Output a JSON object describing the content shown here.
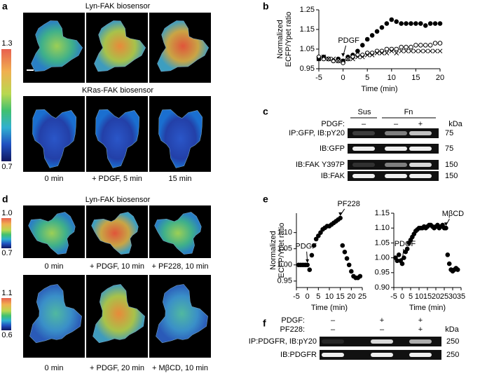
{
  "panel_labels": [
    "a",
    "b",
    "c",
    "d",
    "e",
    "f"
  ],
  "panel_a": {
    "title_top": "Lyn-FAK biosensor",
    "title_bottom": "KRas-FAK biosensor",
    "colorbar": [
      "1.3",
      "0.7"
    ],
    "times": [
      "0 min",
      "+ PDGF, 5 min",
      "15 min"
    ]
  },
  "panel_c": {
    "columns": [
      "Sus",
      "Fn"
    ],
    "pdgf_label": "PDGF:",
    "pdgf": [
      "–",
      "–",
      "+"
    ],
    "unit": "kDa",
    "rows": [
      {
        "label": "IP:GFP, IB:pY20",
        "kda": 75
      },
      {
        "label": "IB:GFP",
        "kda": 75
      },
      {
        "label": "IB:FAK Y397P",
        "kda": 150
      },
      {
        "label": "IB:FAK",
        "kda": 150
      }
    ]
  },
  "panel_d": {
    "title": "Lyn-FAK biosensor",
    "colorbars": [
      [
        "1.0",
        "0.7"
      ],
      [
        "1.1",
        "0.6"
      ]
    ],
    "times": [
      [
        "0 min",
        "+ PDGF, 10 min",
        "+ PF228, 10 min"
      ],
      [
        "0 min",
        "+ PDGF, 20 min",
        "+ MβCD, 10 min"
      ]
    ]
  },
  "panel_f": {
    "treatments": [
      {
        "label": "PDGF:",
        "marks": [
          "–",
          "+",
          "+"
        ]
      },
      {
        "label": "PF228:",
        "marks": [
          "–",
          "–",
          "+"
        ]
      }
    ],
    "unit": "kDa",
    "rows": [
      {
        "label": "IP:PDGFR, IB:pY20",
        "kda": 250
      },
      {
        "label": "IB:PDGFR",
        "kda": 250
      }
    ]
  },
  "chart_data": [
    {
      "type": "scatter",
      "xlabel": "Time (min)",
      "ylabel": [
        "Normalized",
        "ECFP/Ypet ratio"
      ],
      "xlim": [
        -5,
        20
      ],
      "xticks": [
        -5,
        0,
        5,
        10,
        15,
        20
      ],
      "ylim": [
        0.95,
        1.25
      ],
      "yticks": [
        0.95,
        1.05,
        1.15,
        1.25
      ],
      "annotations": [
        {
          "text": "PDGF",
          "x": 0,
          "y": 1.0
        }
      ],
      "x": [
        -5,
        -4,
        -3,
        -2,
        -1,
        0,
        1,
        2,
        3,
        4,
        5,
        6,
        7,
        8,
        9,
        10,
        11,
        12,
        13,
        14,
        15,
        16,
        17,
        18,
        19,
        20
      ],
      "series": [
        {
          "marker": "filled",
          "color": "#000000",
          "values": [
            1.0,
            1.01,
            1.0,
            0.99,
            1.0,
            0.99,
            1.01,
            1.02,
            1.04,
            1.07,
            1.1,
            1.12,
            1.14,
            1.16,
            1.18,
            1.2,
            1.19,
            1.18,
            1.18,
            1.18,
            1.18,
            1.18,
            1.17,
            1.18,
            1.18,
            1.18
          ]
        },
        {
          "marker": "open",
          "color": "#000000",
          "values": [
            1.01,
            1.0,
            1.0,
            0.99,
            0.99,
            0.98,
            1.0,
            1.01,
            1.02,
            1.02,
            1.03,
            1.03,
            1.04,
            1.04,
            1.05,
            1.05,
            1.05,
            1.06,
            1.06,
            1.06,
            1.07,
            1.07,
            1.07,
            1.07,
            1.08,
            1.08
          ]
        },
        {
          "marker": "cross",
          "color": "#000000",
          "values": [
            1.0,
            1.01,
            1.0,
            1.0,
            0.99,
            0.99,
            1.0,
            1.0,
            1.01,
            1.01,
            1.02,
            1.02,
            1.03,
            1.03,
            1.03,
            1.04,
            1.03,
            1.04,
            1.04,
            1.04,
            1.04,
            1.04,
            1.04,
            1.04,
            1.04,
            1.04
          ]
        }
      ]
    },
    {
      "type": "scatter",
      "xlabel": "Time (min)",
      "ylabel": [
        "Normalized",
        "ECFP/Ypet ratio"
      ],
      "xlim": [
        -5,
        25
      ],
      "xticks": [
        -5,
        0,
        5,
        10,
        15,
        20,
        25
      ],
      "ylim": [
        0.93,
        1.16
      ],
      "yticks": [
        0.95,
        {
          "value": 1.0,
          "label": "1.00"
        },
        1.05,
        {
          "value": 1.1,
          "label": "1.10"
        }
      ],
      "annotations": [
        {
          "text": "PDGF",
          "x": 0,
          "y": 1.0
        },
        {
          "text": "PF228",
          "x": 15,
          "y": 1.145
        }
      ],
      "x": [
        -4,
        -3,
        -2,
        -1,
        0,
        1,
        2,
        3,
        4,
        5,
        6,
        7,
        8,
        9,
        10,
        11,
        12,
        13,
        14,
        15,
        16,
        17,
        18,
        19,
        20,
        21,
        22,
        23,
        24
      ],
      "series": [
        {
          "marker": "filled",
          "color": "#000000",
          "values": [
            1.0,
            1.0,
            1.0,
            1.0,
            1.0,
            0.985,
            1.03,
            1.06,
            1.08,
            1.09,
            1.1,
            1.11,
            1.115,
            1.12,
            1.12,
            1.125,
            1.13,
            1.135,
            1.14,
            1.145,
            1.06,
            1.04,
            1.02,
            1.0,
            0.98,
            0.965,
            0.96,
            0.96,
            0.965
          ]
        }
      ]
    },
    {
      "type": "scatter",
      "xlabel": "Time (min)",
      "xlim": [
        -5,
        35
      ],
      "xticks": [
        -5,
        0,
        5,
        10,
        15,
        20,
        25,
        30,
        35
      ],
      "ylim": [
        0.9,
        1.15
      ],
      "yticks": [
        {
          "value": 0.9,
          "label": "0.90"
        },
        0.95,
        {
          "value": 1.0,
          "label": "1.00"
        },
        1.05,
        {
          "value": 1.1,
          "label": "1.10"
        },
        1.15
      ],
      "annotations": [
        {
          "text": "PDGF",
          "x": 0,
          "y": 0.98
        },
        {
          "text": "MβCD",
          "x": 26,
          "y": 1.1
        }
      ],
      "x": [
        -4,
        -3,
        -2,
        -1,
        0,
        1,
        2,
        3,
        4,
        5,
        6,
        7,
        8,
        9,
        10,
        11,
        12,
        13,
        14,
        15,
        16,
        17,
        18,
        19,
        20,
        21,
        22,
        23,
        24,
        25,
        26,
        27,
        28,
        29,
        30,
        31,
        32,
        33
      ],
      "series": [
        {
          "marker": "filled",
          "color": "#000000",
          "values": [
            1.0,
            0.99,
            1.01,
            0.99,
            0.98,
            1.0,
            1.02,
            1.03,
            1.05,
            1.06,
            1.07,
            1.08,
            1.09,
            1.095,
            1.1,
            1.1,
            1.1,
            1.105,
            1.1,
            1.105,
            1.11,
            1.11,
            1.105,
            1.1,
            1.105,
            1.11,
            1.1,
            1.105,
            1.11,
            1.1,
            1.1,
            1.01,
            0.98,
            0.96,
            0.955,
            0.96,
            0.965,
            0.96
          ]
        }
      ]
    }
  ]
}
